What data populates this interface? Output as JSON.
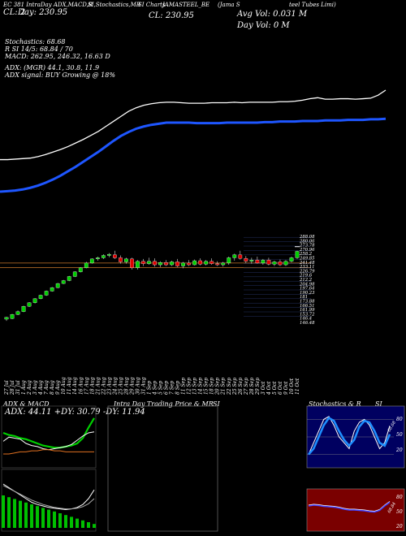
{
  "header": {
    "line1": "EC 381 IntraDay ADX,MACD,R",
    "line1b": "SI,Stochastics,MR",
    "line1c": "SI Charts",
    "symbol": "JAMASTEEL_BE",
    "name_a": "(Jama S",
    "name_b": "teel Tubes Limi)",
    "cl_left": "CL: 2",
    "day_left": "Day: 230.95",
    "cl_mid": "CL: 230.95",
    "avg_vol": "Avg Vol: 0.031 M",
    "day_vol": "Day Vol: 0   M"
  },
  "indicators": {
    "stoch": "Stochastics: 68.68",
    "rsi": "R           SI 14/5: 68.84 / 70",
    "macd": "MACD: 262.95, 246.32, 16.63 D",
    "adx": "ADX:                   (MGR) 44.1, 30.8, 11.9",
    "adx_signal": "ADX  signal:                           BUY Growing @ 18%"
  },
  "panels": {
    "adx_title": "ADX  & MACD",
    "adx_values": "ADX: 44.11 +DY: 30.79 -DY: 11.94",
    "intraday_title": "Intra  Day Trading Price  & MR",
    "intraday_title_b": "SI",
    "stoch_title": "Stochastics & R",
    "stoch_title_b": "SI",
    "stoch_ticks": [
      "80",
      "50",
      "20"
    ],
    "rsi_ticks": [
      "80",
      "50",
      "20"
    ],
    "stoch_value_label": "68.68",
    "rsi_value_label": "68.84"
  },
  "chart_data": {
    "type": "candlestick",
    "price_ticks": [
      "288.08",
      "280.06",
      "273.78",
      "270.96",
      "258.2",
      "249.85",
      "241.48",
      "233.11",
      "226.79",
      "219.6",
      "212.2",
      "204.98",
      "197.64",
      "190.23",
      "181",
      "173.88",
      "166.51",
      "161.99",
      "153.72",
      "146.4",
      "146.48"
    ],
    "dates": [
      "27 Jul",
      "28 Jul",
      "31 Jul",
      "1 Aug",
      "2 Aug",
      "3 Aug",
      "4 Aug",
      "7 Aug",
      "8 Aug",
      "9 Aug",
      "10 Aug",
      "11 Aug",
      "14 Aug",
      "16 Aug",
      "17 Aug",
      "18 Aug",
      "21 Aug",
      "22 Aug",
      "23 Aug",
      "24 Aug",
      "25 Aug",
      "28 Aug",
      "29 Aug",
      "30 Aug",
      "31 Aug",
      "1 Sep",
      "4 Sep",
      "5 Sep",
      "6 Sep",
      "7 Sep",
      "8 Sep",
      "11 Sep",
      "12 Sep",
      "13 Sep",
      "14 Sep",
      "15 Sep",
      "18 Sep",
      "20 Sep",
      "21 Sep",
      "22 Sep",
      "25 Sep",
      "26 Sep",
      "27 Sep",
      "28 Sep",
      "29 Sep",
      "3 Oct",
      "4 Oct",
      "5 Oct",
      "6 Oct",
      "9 Oct",
      "10 Oct",
      "11 Oct"
    ],
    "candles": [
      [
        145,
        149,
        142,
        148
      ],
      [
        146,
        154,
        145,
        153
      ],
      [
        153,
        160,
        152,
        158
      ],
      [
        158,
        168,
        157,
        167
      ],
      [
        167,
        174,
        166,
        173
      ],
      [
        173,
        181,
        172,
        180
      ],
      [
        180,
        187,
        179,
        186
      ],
      [
        186,
        194,
        185,
        193
      ],
      [
        193,
        200,
        192,
        199
      ],
      [
        199,
        207,
        198,
        206
      ],
      [
        206,
        212,
        205,
        211
      ],
      [
        211,
        219,
        210,
        218
      ],
      [
        218,
        227,
        217,
        226
      ],
      [
        226,
        234,
        225,
        233
      ],
      [
        233,
        243,
        232,
        241
      ],
      [
        241,
        249,
        240,
        248
      ],
      [
        248,
        252,
        245,
        250
      ],
      [
        250,
        256,
        248,
        254
      ],
      [
        254,
        258,
        251,
        256
      ],
      [
        255,
        262,
        248,
        250
      ],
      [
        250,
        254,
        240,
        243
      ],
      [
        243,
        250,
        240,
        248
      ],
      [
        248,
        250,
        230,
        233
      ],
      [
        233,
        246,
        230,
        244
      ],
      [
        244,
        248,
        236,
        240
      ],
      [
        240,
        250,
        238,
        244
      ],
      [
        244,
        249,
        235,
        238
      ],
      [
        238,
        244,
        234,
        242
      ],
      [
        242,
        246,
        236,
        238
      ],
      [
        238,
        245,
        236,
        243
      ],
      [
        243,
        248,
        234,
        236
      ],
      [
        236,
        243,
        232,
        241
      ],
      [
        241,
        246,
        236,
        238
      ],
      [
        238,
        247,
        237,
        245
      ],
      [
        245,
        249,
        237,
        239
      ],
      [
        239,
        246,
        237,
        244
      ],
      [
        244,
        249,
        238,
        240
      ],
      [
        240,
        244,
        236,
        238
      ],
      [
        238,
        243,
        235,
        241
      ],
      [
        241,
        252,
        238,
        250
      ],
      [
        250,
        257,
        245,
        255
      ],
      [
        255,
        262,
        247,
        249
      ],
      [
        249,
        253,
        241,
        244
      ],
      [
        244,
        250,
        240,
        246
      ],
      [
        246,
        252,
        240,
        241
      ],
      [
        241,
        248,
        238,
        246
      ],
      [
        246,
        250,
        237,
        239
      ],
      [
        239,
        245,
        236,
        243
      ],
      [
        243,
        247,
        236,
        238
      ],
      [
        238,
        246,
        236,
        244
      ],
      [
        244,
        252,
        242,
        250
      ],
      [
        250,
        262,
        248,
        261
      ]
    ],
    "last_mark": 269,
    "ma_white": [
      12,
      12,
      13,
      14,
      15,
      18,
      22,
      27,
      32,
      38,
      45,
      52,
      60,
      68,
      78,
      88,
      98,
      108,
      115,
      120,
      123,
      125,
      126,
      126,
      125,
      124,
      124,
      124,
      125,
      125,
      125,
      126,
      125,
      126,
      126,
      126,
      126,
      127,
      127,
      128,
      130,
      133,
      135,
      132,
      132,
      133,
      133,
      132,
      133,
      134,
      140,
      150
    ],
    "ma_blue": [
      0,
      1,
      2,
      4,
      7,
      11,
      16,
      22,
      29,
      37,
      45,
      54,
      63,
      72,
      82,
      92,
      101,
      108,
      114,
      118,
      121,
      123,
      125,
      125,
      125,
      125,
      124,
      124,
      124,
      124,
      125,
      125,
      125,
      125,
      125,
      126,
      126,
      127,
      127,
      127,
      128,
      128,
      128,
      129,
      129,
      129,
      130,
      130,
      130,
      131,
      131,
      132
    ],
    "adx_series": {
      "adx": [
        30,
        28,
        27,
        25,
        24,
        22,
        20,
        18,
        17,
        16,
        16,
        17,
        18,
        20,
        25,
        35,
        44
      ],
      "dip": [
        22,
        26,
        25,
        24,
        20,
        18,
        17,
        15,
        14,
        15,
        16,
        17,
        19,
        23,
        27,
        30,
        31
      ],
      "dim": [
        10,
        10,
        11,
        12,
        12,
        13,
        13,
        14,
        14,
        13,
        13,
        12,
        12,
        12,
        12,
        12,
        12
      ]
    },
    "stoch_series": [
      20,
      40,
      60,
      80,
      85,
      70,
      50,
      40,
      30,
      60,
      75,
      80,
      70,
      50,
      30,
      40,
      69
    ],
    "rsi_series": [
      60,
      62,
      61,
      59,
      58,
      57,
      55,
      52,
      50,
      50,
      49,
      48,
      46,
      45,
      49,
      60,
      69
    ]
  }
}
